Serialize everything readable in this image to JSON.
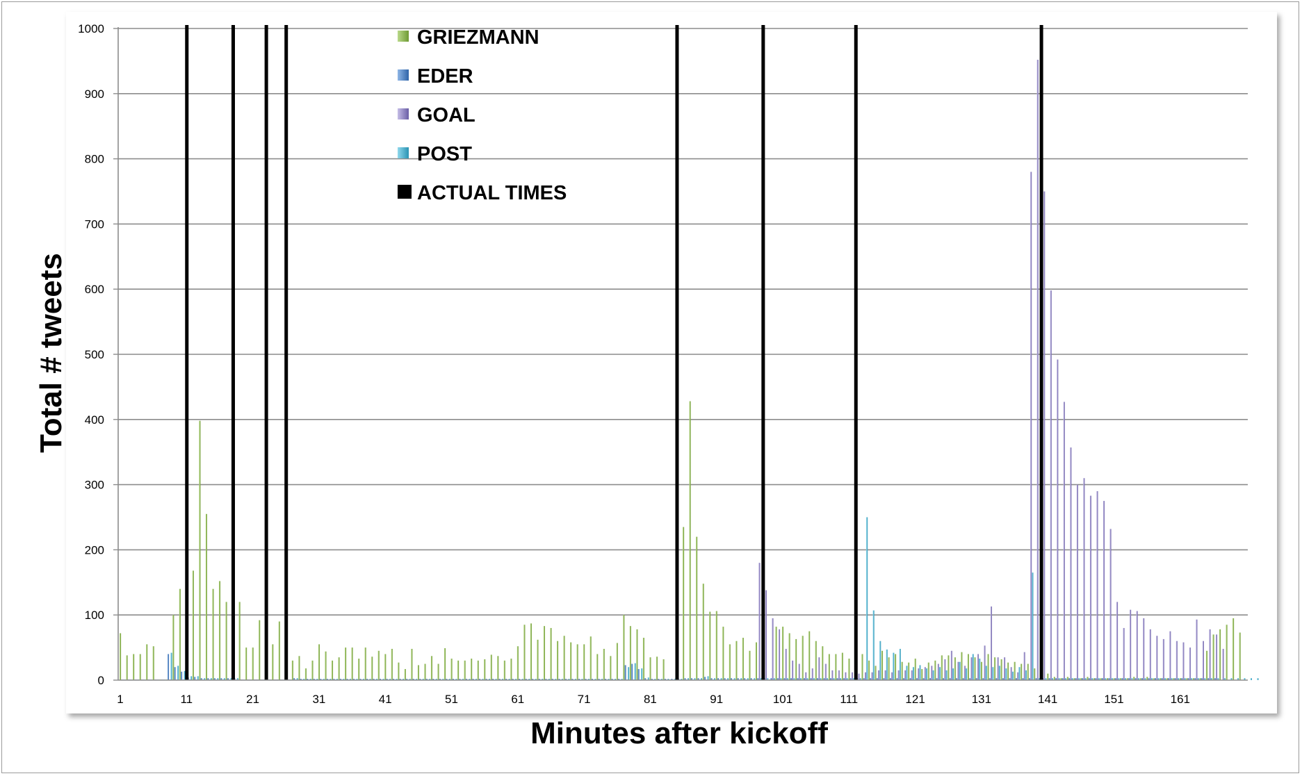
{
  "chart_data": {
    "type": "bar",
    "title": "",
    "xlabel": "Minutes  after kickoff",
    "ylabel": "Total  #  tweets",
    "ylim": [
      0,
      1000
    ],
    "yticks": [
      0,
      100,
      200,
      300,
      400,
      500,
      600,
      700,
      800,
      900,
      1000
    ],
    "xticks": [
      1,
      11,
      21,
      31,
      41,
      51,
      61,
      71,
      81,
      91,
      101,
      111,
      121,
      131,
      141,
      151,
      161
    ],
    "x_start": 1,
    "x_end": 170,
    "grid": true,
    "legend_position": "top-center",
    "legend": [
      {
        "name": "GRIEZMANN",
        "color": "#8fb84f"
      },
      {
        "name": "EDER",
        "color": "#4f86c6"
      },
      {
        "name": "GOAL",
        "color": "#8b7fc0"
      },
      {
        "name": "POST",
        "color": "#43b0cf"
      },
      {
        "name": "ACTUAL TIMES",
        "color": "#000000"
      }
    ],
    "series": [
      {
        "name": "GRIEZMANN",
        "color": "#8fb84f",
        "values": [
          72,
          38,
          40,
          40,
          55,
          52,
          0,
          0,
          100,
          140,
          82,
          168,
          398,
          255,
          140,
          152,
          120,
          147,
          120,
          50,
          50,
          92,
          93,
          55,
          90,
          60,
          30,
          37,
          18,
          30,
          55,
          44,
          30,
          35,
          50,
          50,
          33,
          50,
          36,
          45,
          40,
          48,
          27,
          17,
          48,
          23,
          25,
          37,
          25,
          49,
          33,
          30,
          30,
          33,
          30,
          32,
          39,
          37,
          30,
          33,
          52,
          85,
          87,
          62,
          83,
          80,
          60,
          68,
          58,
          55,
          55,
          67,
          40,
          48,
          37,
          57,
          100,
          83,
          78,
          65,
          35,
          36,
          32,
          0,
          0,
          235,
          428,
          220,
          148,
          105,
          106,
          82,
          55,
          60,
          65,
          45,
          58,
          40,
          0,
          82,
          82,
          72,
          63,
          68,
          75,
          60,
          52,
          40,
          40,
          42,
          33,
          38,
          40,
          30,
          22,
          45,
          35,
          40,
          28,
          27,
          33,
          17,
          27,
          30,
          38,
          38,
          35,
          43,
          40,
          35,
          28,
          40,
          35,
          32,
          27,
          28,
          25,
          25,
          18,
          13,
          10,
          5,
          3,
          5,
          3,
          3,
          5,
          3,
          3,
          3,
          3,
          3,
          3,
          5,
          3,
          5,
          3,
          3,
          3,
          3,
          3,
          3,
          3,
          3,
          45,
          70,
          78,
          85,
          95,
          73
        ]
      },
      {
        "name": "EDER",
        "color": "#4f86c6",
        "values": [
          0,
          0,
          0,
          0,
          0,
          0,
          0,
          40,
          20,
          13,
          4,
          5,
          3,
          3,
          3,
          3,
          3,
          3,
          0,
          0,
          0,
          0,
          0,
          0,
          0,
          0,
          3,
          2,
          2,
          2,
          2,
          2,
          2,
          2,
          2,
          2,
          2,
          2,
          2,
          2,
          2,
          2,
          2,
          2,
          2,
          2,
          2,
          2,
          2,
          2,
          2,
          2,
          2,
          2,
          2,
          2,
          2,
          2,
          2,
          2,
          2,
          2,
          2,
          2,
          2,
          2,
          2,
          2,
          2,
          2,
          2,
          2,
          2,
          2,
          2,
          2,
          23,
          25,
          17,
          3,
          2,
          2,
          2,
          2,
          2,
          3,
          3,
          3,
          5,
          3,
          3,
          3,
          3,
          3,
          3,
          3,
          3,
          3,
          3,
          3,
          3,
          3,
          3,
          3,
          3,
          3,
          3,
          3,
          3,
          3,
          3,
          3,
          3,
          3,
          3,
          3,
          3,
          3,
          3,
          3,
          3,
          3,
          3,
          3,
          3,
          3,
          3,
          3,
          3,
          3,
          3,
          3,
          3,
          3,
          3,
          3,
          3,
          3,
          3,
          3,
          3,
          3,
          3,
          3,
          3,
          3,
          3,
          3,
          3,
          3,
          3,
          3,
          3,
          3,
          3,
          3,
          3,
          3,
          3,
          3,
          3,
          3,
          3,
          3,
          3,
          3
        ]
      },
      {
        "name": "GOAL",
        "color": "#8b7fc0",
        "values": [
          0,
          0,
          0,
          0,
          0,
          0,
          0,
          0,
          0,
          0,
          0,
          0,
          0,
          0,
          0,
          0,
          0,
          0,
          0,
          0,
          0,
          0,
          0,
          0,
          0,
          0,
          0,
          0,
          0,
          0,
          0,
          0,
          0,
          0,
          0,
          0,
          0,
          0,
          0,
          0,
          0,
          0,
          0,
          0,
          0,
          0,
          0,
          0,
          0,
          0,
          0,
          0,
          0,
          0,
          0,
          0,
          0,
          0,
          0,
          0,
          0,
          0,
          0,
          0,
          0,
          0,
          0,
          0,
          0,
          0,
          0,
          0,
          0,
          0,
          0,
          0,
          0,
          0,
          0,
          0,
          0,
          0,
          0,
          0,
          0,
          0,
          0,
          0,
          0,
          0,
          0,
          0,
          0,
          0,
          0,
          0,
          180,
          138,
          95,
          78,
          48,
          30,
          25,
          12,
          18,
          35,
          25,
          15,
          15,
          12,
          12,
          10,
          12,
          12,
          15,
          15,
          12,
          15,
          15,
          15,
          18,
          20,
          22,
          25,
          32,
          45,
          28,
          22,
          35,
          40,
          53,
          113,
          35,
          35,
          20,
          12,
          43,
          780,
          952,
          750,
          598,
          492,
          427,
          357,
          300,
          310,
          283,
          290,
          275,
          232,
          120,
          80,
          108,
          106,
          95,
          78,
          68,
          63,
          75,
          60,
          58,
          50,
          93,
          60,
          78,
          70,
          48
        ]
      },
      {
        "name": "POST",
        "color": "#43b0cf",
        "values": [
          0,
          0,
          0,
          0,
          0,
          0,
          0,
          42,
          22,
          14,
          6,
          6,
          3,
          3,
          3,
          3,
          3,
          3,
          0,
          0,
          0,
          0,
          0,
          0,
          0,
          0,
          3,
          2,
          2,
          2,
          2,
          2,
          2,
          2,
          2,
          2,
          2,
          2,
          2,
          2,
          2,
          2,
          2,
          2,
          2,
          2,
          2,
          2,
          2,
          2,
          2,
          2,
          2,
          2,
          2,
          2,
          2,
          2,
          2,
          2,
          2,
          2,
          2,
          2,
          2,
          2,
          2,
          2,
          2,
          2,
          2,
          2,
          2,
          2,
          2,
          2,
          20,
          26,
          18,
          4,
          2,
          2,
          2,
          2,
          2,
          3,
          3,
          3,
          6,
          3,
          3,
          3,
          3,
          3,
          3,
          3,
          3,
          3,
          3,
          3,
          3,
          3,
          3,
          3,
          3,
          3,
          3,
          3,
          3,
          3,
          3,
          3,
          250,
          107,
          60,
          47,
          42,
          48,
          22,
          20,
          23,
          18,
          15,
          20,
          15,
          18,
          28,
          18,
          40,
          33,
          22,
          20,
          22,
          18,
          13,
          20,
          15,
          165,
          3,
          3,
          3,
          3,
          3,
          3,
          3,
          3,
          3,
          3,
          3,
          3,
          3,
          3,
          3,
          3,
          3,
          3,
          3,
          3,
          3,
          3,
          3,
          3,
          3,
          3,
          3,
          3,
          3,
          3,
          3,
          3,
          3,
          3
        ]
      }
    ],
    "actual_times": [
      10,
      17,
      22,
      25,
      84,
      97,
      111,
      139
    ]
  }
}
